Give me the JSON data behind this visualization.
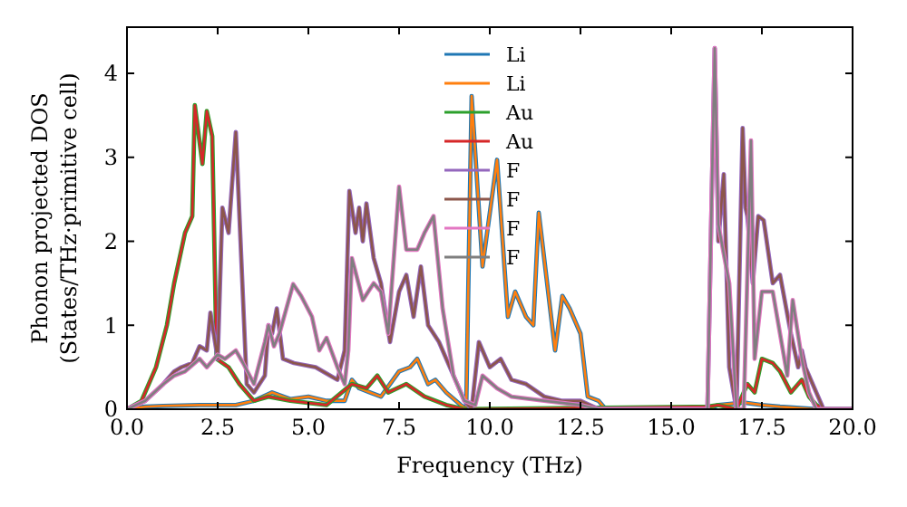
{
  "chart_data": {
    "type": "line",
    "xlabel": "Frequency (THz)",
    "ylabel": "Phonon projected DOS\n(States/THz·primitive cell)",
    "xlim": [
      0,
      20
    ],
    "ylim": [
      0,
      4.55
    ],
    "xticks": [
      {
        "value": 0,
        "label": "0.0"
      },
      {
        "value": 2.5,
        "label": "2.5"
      },
      {
        "value": 5,
        "label": "5.0"
      },
      {
        "value": 7.5,
        "label": "7.5"
      },
      {
        "value": 10,
        "label": "10.0"
      },
      {
        "value": 12.5,
        "label": "12.5"
      },
      {
        "value": 15,
        "label": "15.0"
      },
      {
        "value": 17.5,
        "label": "17.5"
      },
      {
        "value": 20,
        "label": "20.0"
      }
    ],
    "yticks": [
      0,
      1,
      2,
      3,
      4
    ],
    "grid": false,
    "legend": "top",
    "marker": "none",
    "line_style": "solid",
    "series": [
      {
        "name": "Li",
        "color": "#1f77b4",
        "x": [
          0,
          0.5,
          1,
          2,
          3,
          3.5,
          4,
          4.5,
          5,
          5.5,
          6,
          6.2,
          6.4,
          6.7,
          7,
          7.5,
          7.8,
          8,
          8.3,
          8.5,
          8.8,
          9.2,
          9.35,
          9.5,
          9.8,
          10.2,
          10.5,
          10.7,
          11,
          11.2,
          11.35,
          11.8,
          12,
          12.2,
          12.5,
          12.7,
          13,
          13.2,
          16,
          16.3,
          17,
          17.5,
          18,
          19,
          20
        ],
        "values": [
          0,
          0.03,
          0.04,
          0.05,
          0.05,
          0.1,
          0.2,
          0.12,
          0.15,
          0.1,
          0.1,
          0.35,
          0.25,
          0.2,
          0.15,
          0.45,
          0.5,
          0.6,
          0.3,
          0.35,
          0.2,
          0.05,
          0,
          3.73,
          1.7,
          2.97,
          1.1,
          1.4,
          1.1,
          1,
          2.34,
          0.7,
          1.35,
          1.2,
          0.9,
          0.15,
          0.1,
          0,
          0,
          0.05,
          0.08,
          0.05,
          0.03,
          0,
          0
        ]
      },
      {
        "name": "Li",
        "color": "#ff7f0e",
        "x": [
          0,
          0.5,
          1,
          2,
          3,
          3.5,
          4,
          4.5,
          5,
          5.5,
          6,
          6.2,
          6.4,
          6.7,
          7,
          7.5,
          7.8,
          8,
          8.3,
          8.5,
          8.8,
          9.2,
          9.35,
          9.5,
          9.8,
          10.2,
          10.5,
          10.7,
          11,
          11.2,
          11.35,
          11.8,
          12,
          12.2,
          12.5,
          12.7,
          13,
          13.2,
          16,
          16.3,
          17,
          17.5,
          18,
          19,
          20
        ],
        "values": [
          0,
          0.03,
          0.04,
          0.05,
          0.05,
          0.1,
          0.2,
          0.12,
          0.15,
          0.1,
          0.1,
          0.35,
          0.25,
          0.2,
          0.15,
          0.45,
          0.5,
          0.6,
          0.3,
          0.35,
          0.2,
          0.05,
          0,
          3.73,
          1.7,
          2.97,
          1.1,
          1.4,
          1.1,
          1,
          2.34,
          0.7,
          1.35,
          1.2,
          0.9,
          0.15,
          0.1,
          0,
          0,
          0.05,
          0.08,
          0.05,
          0.03,
          0,
          0
        ]
      },
      {
        "name": "Au",
        "color": "#2ca02c",
        "x": [
          0,
          0.4,
          0.8,
          1.1,
          1.3,
          1.6,
          1.8,
          1.87,
          2.08,
          2.2,
          2.35,
          2.47,
          2.8,
          3.1,
          3.3,
          3.5,
          3.9,
          4.5,
          5.5,
          6.2,
          6.6,
          6.9,
          7.2,
          7.7,
          8.2,
          8.8,
          9.3,
          16,
          16.3,
          16.8,
          17.1,
          17.3,
          17.5,
          17.8,
          18,
          18.3,
          18.6,
          18.8,
          19,
          19.2,
          20
        ],
        "values": [
          0,
          0.1,
          0.5,
          1,
          1.5,
          2.1,
          2.3,
          3.62,
          2.92,
          3.55,
          3.25,
          0.6,
          0.5,
          0.3,
          0.2,
          0.1,
          0.15,
          0.1,
          0.05,
          0.3,
          0.25,
          0.4,
          0.2,
          0.3,
          0.15,
          0.05,
          0,
          0.03,
          0.05,
          0,
          0.3,
          0.2,
          0.6,
          0.55,
          0.45,
          0.2,
          0.35,
          0.15,
          0.05,
          0,
          0
        ]
      },
      {
        "name": "Au",
        "color": "#d62728",
        "x": [
          0,
          0.4,
          0.8,
          1.1,
          1.3,
          1.6,
          1.8,
          1.87,
          2.08,
          2.2,
          2.35,
          2.47,
          2.8,
          3.1,
          3.3,
          3.5,
          3.9,
          4.5,
          5.5,
          6.2,
          6.6,
          6.9,
          7.2,
          7.7,
          8.2,
          8.8,
          9.3,
          16,
          16.3,
          16.8,
          17.1,
          17.3,
          17.5,
          17.8,
          18,
          18.3,
          18.6,
          18.8,
          19,
          19.2,
          20
        ],
        "values": [
          0,
          0.1,
          0.5,
          1,
          1.5,
          2.1,
          2.3,
          3.62,
          2.92,
          3.55,
          3.25,
          0.6,
          0.5,
          0.3,
          0.2,
          0.1,
          0.15,
          0.1,
          0.05,
          0.3,
          0.25,
          0.4,
          0.2,
          0.3,
          0.15,
          0.05,
          0,
          0.03,
          0.05,
          0,
          0.3,
          0.2,
          0.6,
          0.55,
          0.45,
          0.2,
          0.35,
          0.15,
          0.05,
          0,
          0
        ]
      },
      {
        "name": "F",
        "color": "#9467bd",
        "x": [
          0,
          0.5,
          1,
          1.3,
          1.5,
          1.8,
          2,
          2.2,
          2.3,
          2.5,
          2.63,
          2.8,
          3,
          3.3,
          3.5,
          3.8,
          3.9,
          4,
          4.13,
          4.3,
          4.6,
          5.2,
          5.6,
          5.8,
          6,
          6.13,
          6.3,
          6.4,
          6.5,
          6.6,
          6.8,
          7,
          7.25,
          7.5,
          7.7,
          7.9,
          8.1,
          8.3,
          8.6,
          8.9,
          9.3,
          9.5,
          9.7,
          10,
          10.3,
          10.6,
          11,
          11.5,
          12,
          12.5,
          13,
          16,
          16.2,
          16.3,
          16.45,
          16.6,
          16.8,
          16.97,
          17.05,
          17.1,
          17.25,
          17.4,
          17.55,
          17.8,
          18,
          18.3,
          18.5,
          18.6,
          18.7,
          19,
          19.2,
          20
        ],
        "values": [
          0,
          0.1,
          0.3,
          0.45,
          0.5,
          0.55,
          0.75,
          0.7,
          1.15,
          0.6,
          2.4,
          2.1,
          3.3,
          0.3,
          0.2,
          0.4,
          1,
          0.9,
          1.2,
          0.6,
          0.55,
          0.5,
          0.4,
          0.35,
          0.7,
          2.6,
          2.1,
          2.4,
          2,
          2.45,
          1.8,
          1.5,
          0.8,
          1.4,
          1.6,
          1.1,
          1.7,
          1,
          0.8,
          0.5,
          0.1,
          0,
          0.8,
          0.5,
          0.6,
          0.35,
          0.3,
          0.15,
          0.1,
          0.1,
          0,
          0,
          4.3,
          2,
          2.8,
          0.5,
          0,
          3.35,
          2.4,
          2.3,
          1.5,
          2.3,
          2.25,
          1.5,
          1.6,
          0.9,
          0.5,
          0.7,
          0.5,
          0.2,
          0,
          0
        ]
      },
      {
        "name": "F",
        "color": "#8c564b",
        "x": [
          0,
          0.5,
          1,
          1.3,
          1.5,
          1.8,
          2,
          2.2,
          2.3,
          2.5,
          2.63,
          2.8,
          3,
          3.3,
          3.5,
          3.8,
          3.9,
          4,
          4.13,
          4.3,
          4.6,
          5.2,
          5.6,
          5.8,
          6,
          6.13,
          6.3,
          6.4,
          6.5,
          6.6,
          6.8,
          7,
          7.25,
          7.5,
          7.7,
          7.9,
          8.1,
          8.3,
          8.6,
          8.9,
          9.3,
          9.5,
          9.7,
          10,
          10.3,
          10.6,
          11,
          11.5,
          12,
          12.5,
          13,
          16,
          16.2,
          16.3,
          16.45,
          16.6,
          16.8,
          16.97,
          17.05,
          17.1,
          17.25,
          17.4,
          17.55,
          17.8,
          18,
          18.3,
          18.5,
          18.6,
          18.7,
          19,
          19.2,
          20
        ],
        "values": [
          0,
          0.1,
          0.3,
          0.45,
          0.5,
          0.55,
          0.75,
          0.7,
          1.15,
          0.6,
          2.4,
          2.1,
          3.3,
          0.3,
          0.2,
          0.4,
          1,
          0.9,
          1.2,
          0.6,
          0.55,
          0.5,
          0.4,
          0.35,
          0.7,
          2.6,
          2.1,
          2.4,
          2,
          2.45,
          1.8,
          1.5,
          0.8,
          1.4,
          1.6,
          1.1,
          1.7,
          1,
          0.8,
          0.5,
          0.1,
          0,
          0.8,
          0.5,
          0.6,
          0.35,
          0.3,
          0.15,
          0.1,
          0.1,
          0,
          0,
          4.3,
          2,
          2.8,
          0.5,
          0,
          3.35,
          2.4,
          2.3,
          1.5,
          2.3,
          2.25,
          1.5,
          1.6,
          0.9,
          0.5,
          0.7,
          0.5,
          0.2,
          0,
          0
        ]
      },
      {
        "name": "F",
        "color": "#e377c2",
        "x": [
          0,
          0.5,
          1,
          1.3,
          1.6,
          2,
          2.2,
          2.5,
          2.7,
          3,
          3.2,
          3.5,
          3.8,
          3.9,
          4.05,
          4.2,
          4.58,
          4.8,
          5.1,
          5.3,
          5.5,
          5.8,
          6,
          6.1,
          6.2,
          6.5,
          6.8,
          7,
          7.2,
          7.5,
          7.7,
          8,
          8.2,
          8.45,
          8.7,
          9,
          9.3,
          9.6,
          9.8,
          10.2,
          10.6,
          11.5,
          12.5,
          13,
          16,
          16.2,
          16.3,
          16.6,
          16.8,
          17.0,
          17.2,
          17.3,
          17.5,
          17.8,
          18,
          18.2,
          18.35,
          18.6,
          18.8,
          19,
          20
        ],
        "values": [
          0,
          0.1,
          0.3,
          0.4,
          0.45,
          0.6,
          0.5,
          0.65,
          0.6,
          0.7,
          0.55,
          0.3,
          0.8,
          1,
          0.75,
          0.9,
          1.49,
          1.35,
          1.1,
          0.7,
          0.85,
          0.5,
          0.3,
          0.7,
          1.8,
          1.3,
          1.5,
          1.4,
          0.9,
          2.65,
          1.9,
          1.9,
          2.1,
          2.3,
          1.2,
          0.4,
          0.1,
          0.05,
          0.4,
          0.25,
          0.15,
          0.1,
          0.05,
          0,
          0,
          4.3,
          2.2,
          1.5,
          0,
          0,
          3.2,
          0.6,
          1.4,
          1.4,
          0.9,
          0.4,
          1.3,
          0.6,
          0.2,
          0,
          0
        ]
      },
      {
        "name": "F",
        "color": "#7f7f7f",
        "x": [
          0,
          0.5,
          1,
          1.3,
          1.6,
          2,
          2.2,
          2.5,
          2.7,
          3,
          3.2,
          3.5,
          3.8,
          3.9,
          4.05,
          4.2,
          4.58,
          4.8,
          5.1,
          5.3,
          5.5,
          5.8,
          6,
          6.1,
          6.2,
          6.5,
          6.8,
          7,
          7.2,
          7.5,
          7.7,
          8,
          8.2,
          8.45,
          8.7,
          9,
          9.3,
          9.6,
          9.8,
          10.2,
          10.6,
          11.5,
          12.5,
          13,
          16,
          16.2,
          16.3,
          16.6,
          16.8,
          17.0,
          17.2,
          17.3,
          17.5,
          17.8,
          18,
          18.2,
          18.35,
          18.6,
          18.8,
          19,
          20
        ],
        "values": [
          0,
          0.1,
          0.3,
          0.4,
          0.45,
          0.6,
          0.5,
          0.65,
          0.6,
          0.7,
          0.55,
          0.3,
          0.8,
          1,
          0.75,
          0.9,
          1.49,
          1.35,
          1.1,
          0.7,
          0.85,
          0.5,
          0.3,
          0.7,
          1.8,
          1.3,
          1.5,
          1.4,
          0.9,
          2.65,
          1.9,
          1.9,
          2.1,
          2.3,
          1.2,
          0.4,
          0.1,
          0.05,
          0.4,
          0.25,
          0.15,
          0.1,
          0.05,
          0,
          0,
          4.3,
          2.2,
          1.5,
          0,
          0,
          3.2,
          0.6,
          1.4,
          1.4,
          0.9,
          0.4,
          1.3,
          0.6,
          0.2,
          0,
          0
        ]
      }
    ]
  }
}
